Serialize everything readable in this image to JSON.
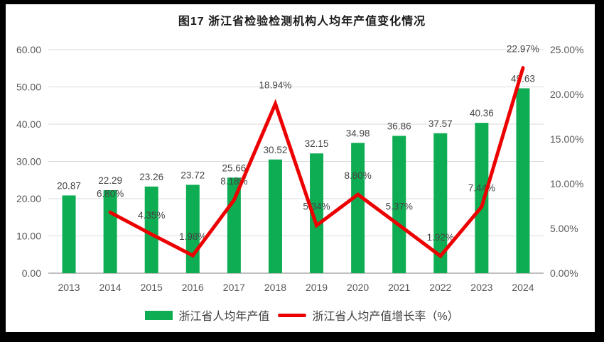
{
  "title": "图17  浙江省检验检测机构人均年产值变化情况",
  "colors": {
    "bar": "#0FAD53",
    "line": "#EC0000",
    "grid": "#DADADA",
    "axis_line": "#ABABAB",
    "tick_text": "#595959",
    "data_label_text": "#444444",
    "title_text": "#1A1A1A",
    "legend_text": "#404040",
    "frame": "#000000",
    "background": "#FFFFFF"
  },
  "chart_data": {
    "type": "bar+line combo",
    "categories": [
      "2013",
      "2014",
      "2015",
      "2016",
      "2017",
      "2018",
      "2019",
      "2020",
      "2021",
      "2022",
      "2023",
      "2024"
    ],
    "series": [
      {
        "name": "浙江省人均年产值",
        "type": "bar",
        "axis": "left",
        "values": [
          20.87,
          22.29,
          23.26,
          23.72,
          25.66,
          30.52,
          32.15,
          34.98,
          36.86,
          37.57,
          40.36,
          49.63
        ],
        "labels": [
          "20.87",
          "22.29",
          "23.26",
          "23.72",
          "25.66",
          "30.52",
          "32.15",
          "34.98",
          "36.86",
          "37.57",
          "40.36",
          "49.63"
        ]
      },
      {
        "name": "浙江省人均产值增长率（%）",
        "type": "line",
        "axis": "right",
        "values": [
          null,
          6.8,
          4.35,
          1.98,
          8.18,
          18.94,
          5.34,
          8.8,
          5.37,
          1.92,
          7.44,
          22.97
        ],
        "labels": [
          null,
          "6.80%",
          "4.35%",
          "1.98%",
          "8.18%",
          "18.94%",
          "5.34%",
          "8.80%",
          "5.37%",
          "1.92%",
          "7.44%",
          "22.97%"
        ]
      }
    ],
    "left_axis": {
      "min": 0,
      "max": 60,
      "ticks": [
        "0.00",
        "10.00",
        "20.00",
        "30.00",
        "40.00",
        "50.00",
        "60.00"
      ]
    },
    "right_axis": {
      "min": 0,
      "max": 25,
      "ticks": [
        "0.00%",
        "5.00%",
        "10.00%",
        "15.00%",
        "20.00%",
        "25.00%"
      ]
    },
    "grid": "horizontal",
    "legend_position": "bottom",
    "legend": [
      "浙江省人均年产值",
      "浙江省人均产值增长率（%）"
    ]
  }
}
